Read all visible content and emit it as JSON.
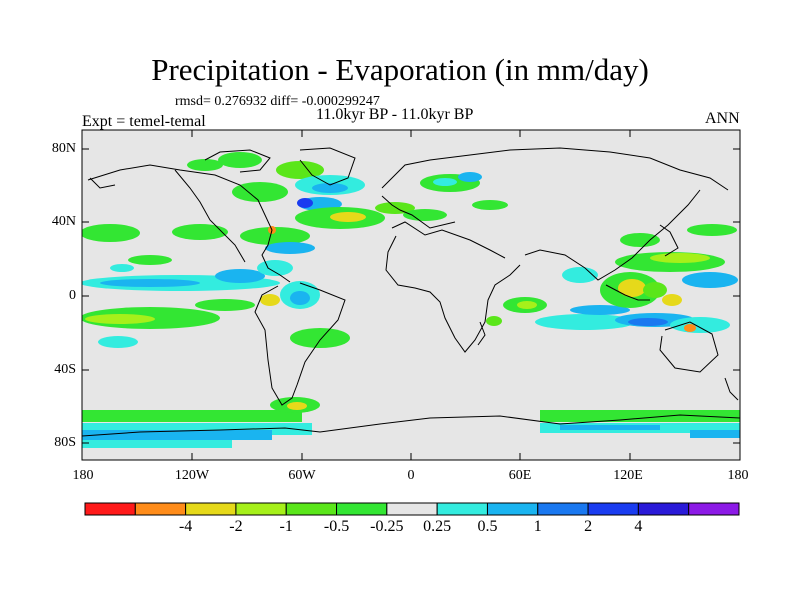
{
  "title": "Precipitation - Evaporation (in mm/day)",
  "stats": "rmsd= 0.276932 diff= -0.000299247",
  "period": "11.0kyr BP - 11.0kyr BP",
  "experiment": "Expt = temel-temal",
  "season": "ANN",
  "lat_labels": [
    "80N",
    "40N",
    "0",
    "40S",
    "80S"
  ],
  "lon_labels": [
    "180",
    "120W",
    "60W",
    "0",
    "60E",
    "120E",
    "180"
  ],
  "colorbar": {
    "colors": [
      "#ff1a1a",
      "#ff8c1a",
      "#e6d91a",
      "#a6f01a",
      "#5ae61a",
      "#33e633",
      "#e6e6e6",
      "#33ecdf",
      "#1ab4f0",
      "#1a78f0",
      "#1a3cf0",
      "#2a1ad8",
      "#8c1ae6"
    ],
    "labels": [
      "-4",
      "-2",
      "-1",
      "-0.5",
      "-0.25",
      "0.25",
      "0.5",
      "1",
      "2",
      "4"
    ]
  },
  "colors": {
    "background": "#e6e6e6",
    "coast": "#000000"
  }
}
